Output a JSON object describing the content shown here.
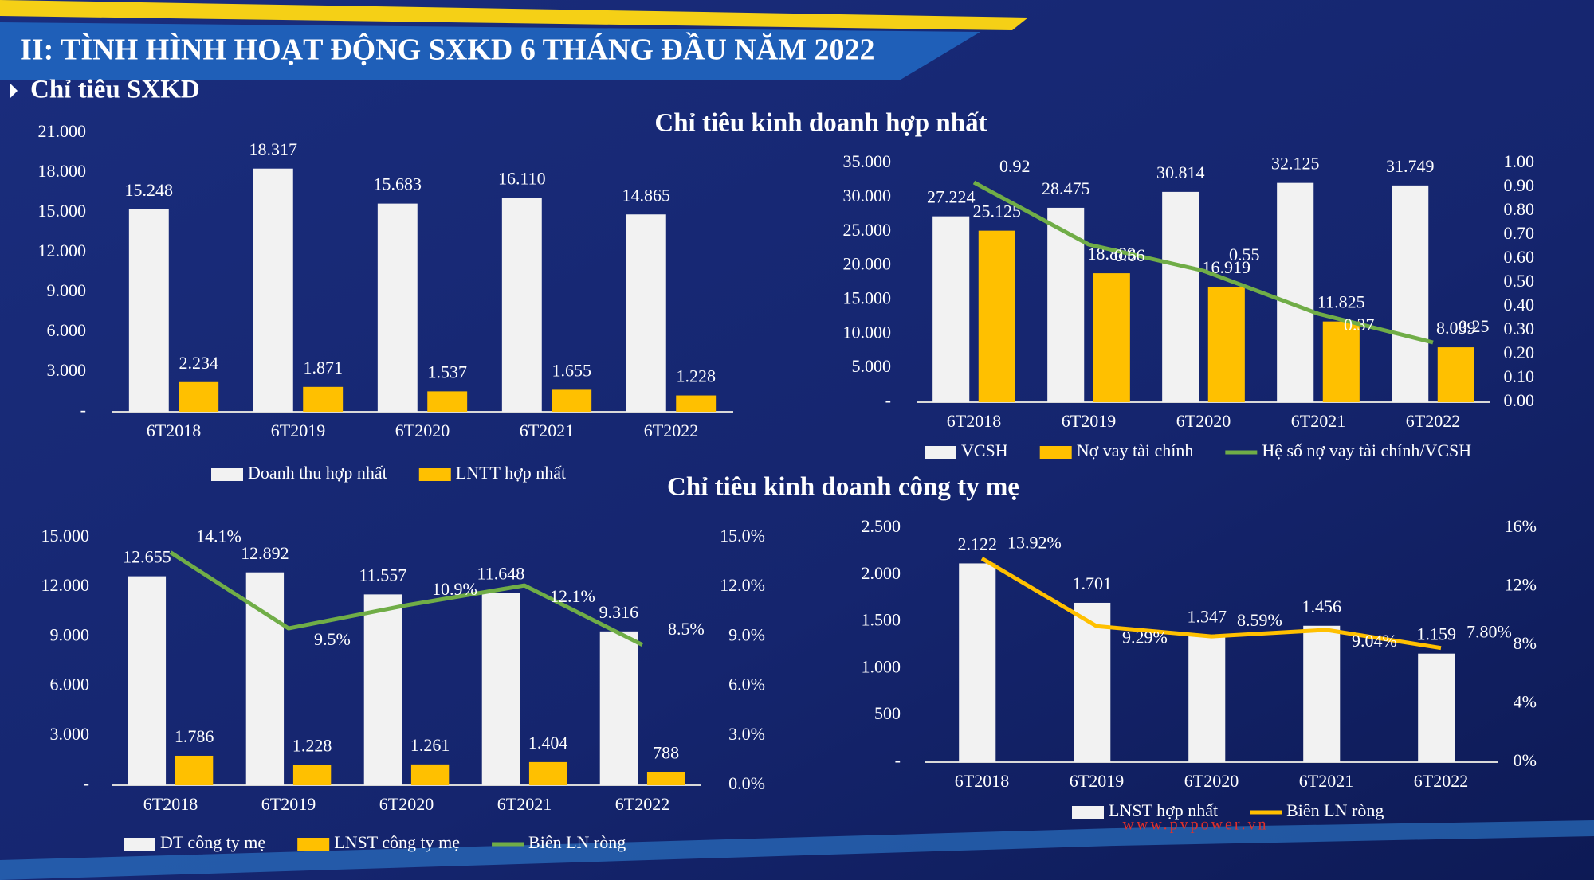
{
  "slide_title": "II: TÌNH HÌNH HOẠT ĐỘNG SXKD 6 THÁNG ĐẦU NĂM 2022",
  "section_label": "Chỉ tiêu SXKD",
  "headings": [
    "Chỉ tiêu kinh doanh hợp nhất",
    "Chỉ tiêu kinh doanh công ty mẹ"
  ],
  "website": "www.pvpower.vn",
  "chart_data": [
    {
      "type": "bar",
      "categories": [
        "6T2018",
        "6T2019",
        "6T2020",
        "6T2021",
        "6T2022"
      ],
      "series": [
        {
          "name": "Doanh thu hợp nhất",
          "type": "bar",
          "color": "#f2f2f2",
          "values": [
            15248,
            18317,
            15683,
            16110,
            14865
          ],
          "value_labels": [
            "15.248",
            "18.317",
            "15.683",
            "16.110",
            "14.865"
          ]
        },
        {
          "name": "LNTT hợp nhất",
          "type": "bar",
          "color": "#ffc000",
          "values": [
            2234,
            1871,
            1537,
            1655,
            1228
          ],
          "value_labels": [
            "2.234",
            "1.871",
            "1.537",
            "1.655",
            "1.228"
          ]
        }
      ],
      "ylim": [
        0,
        21000
      ],
      "yticks": [
        {
          "value": 0,
          "label": "-"
        },
        {
          "value": 3000,
          "label": "3.000"
        },
        {
          "value": 6000,
          "label": "6.000"
        },
        {
          "value": 9000,
          "label": "9.000"
        },
        {
          "value": 12000,
          "label": "12.000"
        },
        {
          "value": 15000,
          "label": "15.000"
        },
        {
          "value": 18000,
          "label": "18.000"
        },
        {
          "value": 21000,
          "label": "21.000"
        }
      ]
    },
    {
      "type": "combo",
      "categories": [
        "6T2018",
        "6T2019",
        "6T2020",
        "6T2021",
        "6T2022"
      ],
      "series": [
        {
          "name": "VCSH",
          "type": "bar",
          "color": "#f2f2f2",
          "values": [
            27224,
            28475,
            30814,
            32125,
            31749
          ],
          "value_labels": [
            "27.224",
            "28.475",
            "30.814",
            "32.125",
            "31.749"
          ]
        },
        {
          "name": "Nợ vay tài chính",
          "type": "bar",
          "color": "#ffc000",
          "values": [
            25125,
            18889,
            16919,
            11825,
            8039
          ],
          "value_labels": [
            "25.125",
            "18.889",
            "16.919",
            "11.825",
            "8.039"
          ]
        },
        {
          "name": "Hệ số nợ vay tài chính/VCSH",
          "type": "line",
          "axis": "y2",
          "color": "#70ad47",
          "values": [
            0.92,
            0.66,
            0.55,
            0.37,
            0.25
          ]
        }
      ],
      "ylim": [
        0,
        35000
      ],
      "yticks": [
        {
          "value": 0,
          "label": "-"
        },
        {
          "value": 5000,
          "label": "5.000"
        },
        {
          "value": 10000,
          "label": "10.000"
        },
        {
          "value": 15000,
          "label": "15.000"
        },
        {
          "value": 20000,
          "label": "20.000"
        },
        {
          "value": 25000,
          "label": "25.000"
        },
        {
          "value": 30000,
          "label": "30.000"
        },
        {
          "value": 35000,
          "label": "35.000"
        }
      ],
      "y2lim": [
        0,
        1
      ],
      "y2ticks": [
        {
          "value": 0,
          "label": "0.00"
        },
        {
          "value": 0.1,
          "label": "0.10"
        },
        {
          "value": 0.2,
          "label": "0.20"
        },
        {
          "value": 0.3,
          "label": "0.30"
        },
        {
          "value": 0.4,
          "label": "0.40"
        },
        {
          "value": 0.5,
          "label": "0.50"
        },
        {
          "value": 0.6,
          "label": "0.60"
        },
        {
          "value": 0.7,
          "label": "0.70"
        },
        {
          "value": 0.8,
          "label": "0.80"
        },
        {
          "value": 0.9,
          "label": "0.90"
        },
        {
          "value": 1,
          "label": "1.00"
        }
      ]
    },
    {
      "type": "combo",
      "categories": [
        "6T2018",
        "6T2019",
        "6T2020",
        "6T2021",
        "6T2022"
      ],
      "series": [
        {
          "name": "DT công ty mẹ",
          "type": "bar",
          "color": "#f2f2f2",
          "values": [
            12655,
            12892,
            11557,
            11648,
            9316
          ],
          "value_labels": [
            "12.655",
            "12.892",
            "11.557",
            "11.648",
            "9.316"
          ]
        },
        {
          "name": "LNST công ty mẹ",
          "type": "bar",
          "color": "#ffc000",
          "values": [
            1786,
            1228,
            1261,
            1404,
            788
          ],
          "value_labels": [
            "1.786",
            "1.228",
            "1.261",
            "1.404",
            "788"
          ]
        },
        {
          "name": "Biên LN ròng",
          "type": "line",
          "axis": "y2",
          "color": "#70ad47",
          "values": [
            14.1,
            9.5,
            10.9,
            12.1,
            8.5
          ],
          "value_labels": [
            "14.1%",
            "9.5%",
            "10.9%",
            "12.1%",
            "8.5%"
          ]
        }
      ],
      "ylim": [
        0,
        15000
      ],
      "yticks": [
        {
          "value": 0,
          "label": "-"
        },
        {
          "value": 3000,
          "label": "3.000"
        },
        {
          "value": 6000,
          "label": "6.000"
        },
        {
          "value": 9000,
          "label": "9.000"
        },
        {
          "value": 12000,
          "label": "12.000"
        },
        {
          "value": 15000,
          "label": "15.000"
        }
      ],
      "y2lim": [
        0,
        15
      ],
      "y2ticks": [
        {
          "value": 0,
          "label": "0.0%"
        },
        {
          "value": 3,
          "label": "3.0%"
        },
        {
          "value": 6,
          "label": "6.0%"
        },
        {
          "value": 9,
          "label": "9.0%"
        },
        {
          "value": 12,
          "label": "12.0%"
        },
        {
          "value": 15,
          "label": "15.0%"
        }
      ]
    },
    {
      "type": "combo",
      "categories": [
        "6T2018",
        "6T2019",
        "6T2020",
        "6T2021",
        "6T2022"
      ],
      "series": [
        {
          "name": "LNST hợp nhất",
          "type": "bar",
          "color": "#f2f2f2",
          "values": [
            2122,
            1701,
            1347,
            1456,
            1159
          ],
          "value_labels": [
            "2.122",
            "1.701",
            "1.347",
            "1.456",
            "1.159"
          ]
        },
        {
          "name": "Biên LN ròng",
          "type": "line",
          "axis": "y2",
          "color": "#ffc000",
          "values": [
            13.92,
            9.29,
            8.59,
            9.04,
            7.8
          ],
          "value_labels": [
            "13.92%",
            "9.29%",
            "8.59%",
            "9.04%",
            "7.80%"
          ]
        }
      ],
      "ylim": [
        0,
        2500
      ],
      "yticks": [
        {
          "value": 0,
          "label": "-"
        },
        {
          "value": 500,
          "label": "500"
        },
        {
          "value": 1000,
          "label": "1.000"
        },
        {
          "value": 1500,
          "label": "1.500"
        },
        {
          "value": 2000,
          "label": "2.000"
        },
        {
          "value": 2500,
          "label": "2.500"
        }
      ],
      "y2lim": [
        0,
        16
      ],
      "y2ticks": [
        {
          "value": 0,
          "label": "0%"
        },
        {
          "value": 4,
          "label": "4%"
        },
        {
          "value": 8,
          "label": "8%"
        },
        {
          "value": 12,
          "label": "12%"
        },
        {
          "value": 16,
          "label": "16%"
        }
      ]
    }
  ]
}
